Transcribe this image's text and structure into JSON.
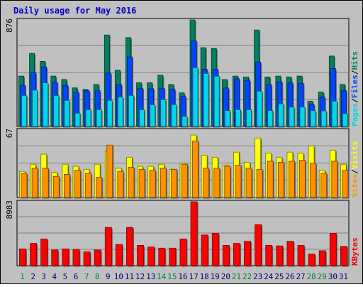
{
  "title": "Daily usage for May 2016",
  "colors": {
    "pages": "#00d8e8",
    "files": "#0044ff",
    "hits": "#008060",
    "sites": "#ff9000",
    "visits": "#ffff00",
    "kbytes": "#ff0000",
    "title_text": "#0000cc",
    "weekday_label": "#000080",
    "weekend_label": "#008040",
    "panel_bg": "#c0c0c0",
    "grid": "#808080"
  },
  "chart_data": [
    {
      "type": "bar",
      "title": "Daily usage for May 2016",
      "ymax_label": "876",
      "legend": [
        "Pages",
        "Files",
        "Hits"
      ],
      "legend_separator": "/",
      "legend_colors": [
        "#00d8e8",
        "#0044ff",
        "#008060"
      ],
      "categories": [
        "1",
        "2",
        "3",
        "4",
        "5",
        "6",
        "7",
        "8",
        "9",
        "10",
        "11",
        "12",
        "13",
        "14",
        "15",
        "16",
        "17",
        "18",
        "19",
        "20",
        "21",
        "22",
        "23",
        "24",
        "25",
        "26",
        "27",
        "28",
        "29",
        "30",
        "31"
      ],
      "ylim": [
        0,
        876
      ],
      "series": [
        {
          "name": "Hits",
          "values": [
            414,
            600,
            535,
            414,
            386,
            317,
            304,
            345,
            752,
            462,
            731,
            359,
            359,
            421,
            345,
            276,
            876,
            648,
            641,
            386,
            414,
            407,
            793,
            407,
            414,
            407,
            414,
            207,
            283,
            579,
            345
          ]
        },
        {
          "name": "Files",
          "values": [
            338,
            443,
            489,
            365,
            338,
            282,
            294,
            294,
            439,
            345,
            572,
            314,
            310,
            314,
            304,
            246,
            704,
            470,
            470,
            316,
            392,
            379,
            530,
            345,
            368,
            359,
            355,
            180,
            241,
            476,
            296
          ]
        },
        {
          "name": "Pages",
          "values": [
            255,
            298,
            359,
            255,
            214,
            110,
            138,
            138,
            214,
            241,
            255,
            138,
            179,
            221,
            179,
            83,
            484,
            435,
            413,
            131,
            138,
            138,
            290,
            131,
            186,
            159,
            159,
            131,
            128,
            207,
            106
          ]
        }
      ]
    },
    {
      "type": "bar",
      "ymax_label": "67",
      "legend": [
        "Sites",
        "Visits"
      ],
      "legend_separator": "/",
      "legend_colors": [
        "#ff9000",
        "#ffff00"
      ],
      "categories": [
        "1",
        "2",
        "3",
        "4",
        "5",
        "6",
        "7",
        "8",
        "9",
        "10",
        "11",
        "12",
        "13",
        "14",
        "15",
        "16",
        "17",
        "18",
        "19",
        "20",
        "21",
        "22",
        "23",
        "24",
        "25",
        "26",
        "27",
        "28",
        "29",
        "30",
        "31"
      ],
      "ylim": [
        0,
        67
      ],
      "series": [
        {
          "name": "Visits",
          "values": [
            26,
            33,
            43,
            25,
            33,
            31,
            28,
            33,
            46,
            29,
            40,
            31,
            31,
            33,
            28,
            34,
            62,
            42,
            40,
            32,
            45,
            35,
            59,
            44,
            40,
            45,
            44,
            51,
            27,
            47,
            33
          ]
        },
        {
          "name": "Sites",
          "values": [
            24,
            29,
            29,
            21,
            23,
            27,
            24,
            20,
            52,
            26,
            30,
            28,
            27,
            29,
            28,
            33,
            56,
            29,
            29,
            31,
            32,
            29,
            28,
            36,
            35,
            36,
            37,
            34,
            24,
            36,
            27
          ]
        }
      ]
    },
    {
      "type": "bar",
      "ymax_label": "8983",
      "legend": [
        "KBytes"
      ],
      "legend_colors": [
        "#ff0000"
      ],
      "categories": [
        "1",
        "2",
        "3",
        "4",
        "5",
        "6",
        "7",
        "8",
        "9",
        "10",
        "11",
        "12",
        "13",
        "14",
        "15",
        "16",
        "17",
        "18",
        "19",
        "20",
        "21",
        "22",
        "23",
        "24",
        "25",
        "26",
        "27",
        "28",
        "29",
        "30",
        "31"
      ],
      "ylim": [
        0,
        8983
      ],
      "series": [
        {
          "name": "KBytes",
          "values": [
            2355,
            3131,
            3754,
            2200,
            2356,
            2277,
            1944,
            2200,
            5376,
            2978,
            5376,
            2855,
            2623,
            2468,
            2468,
            3754,
            8983,
            4312,
            4545,
            2855,
            3131,
            3420,
            5765,
            2855,
            2778,
            3420,
            2855,
            1633,
            2100,
            4545,
            2700
          ]
        }
      ]
    }
  ]
}
